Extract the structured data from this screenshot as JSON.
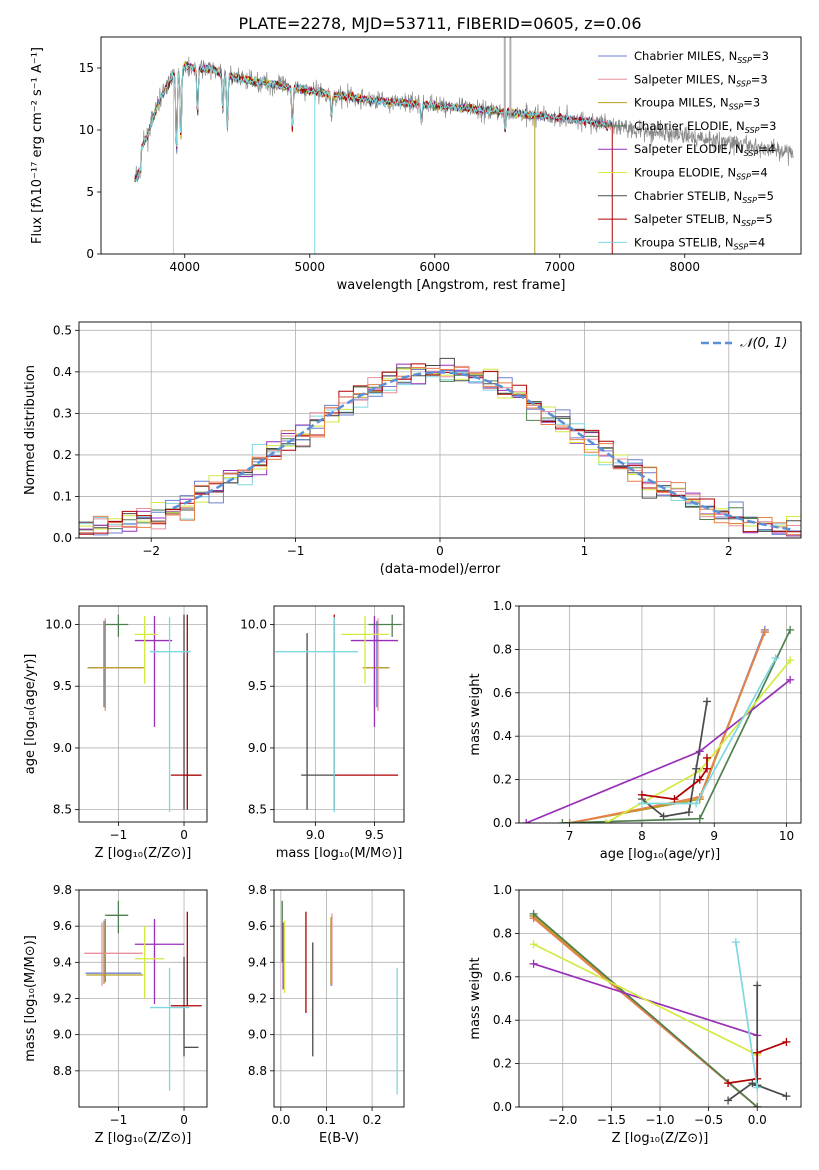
{
  "figure_title": "PLATE=2278, MJD=53711, FIBERID=0605, z=0.06",
  "series_colors": {
    "Chabrier MILES": "#6f7fd0",
    "Salpeter MILES": "#e8909f",
    "Kroupa MILES": "#b8a020",
    "Chabrier ELODIE": "#4f7f4f",
    "Salpeter ELODIE": "#9a2fb8",
    "Kroupa ELODIE": "#d4ea40",
    "Chabrier STELIB": "#4a4a4a",
    "Salpeter STELIB": "#b00000",
    "Kroupa STELIB": "#7ed8e0",
    "extra_gray": "#888888",
    "orange": "#e8804a",
    "magenta": "#e040e0"
  },
  "chart_data": [
    {
      "id": "spectrum",
      "type": "line",
      "xlabel": "wavelength [Angstrom, rest frame]",
      "ylabel": "Flux [fλ10⁻¹⁷ erg cm⁻² s⁻¹ A⁻¹]",
      "xlim": [
        3330,
        8930
      ],
      "ylim": [
        0,
        17.5
      ],
      "xticks": [
        4000,
        5000,
        6000,
        7000,
        8000
      ],
      "yticks": [
        0,
        5,
        10,
        15
      ],
      "grid": false,
      "legend_position": "top-right",
      "legend": [
        {
          "name": "Chabrier MILES",
          "sub": "SSP",
          "val": "=3"
        },
        {
          "name": "Salpeter MILES",
          "sub": "SSP",
          "val": "=3"
        },
        {
          "name": "Kroupa MILES",
          "sub": "SSP",
          "val": "=3"
        },
        {
          "name": "Chabrier ELODIE",
          "sub": "SSP",
          "val": "=3"
        },
        {
          "name": "Salpeter ELODIE",
          "sub": "SSP",
          "val": "=4"
        },
        {
          "name": "Kroupa ELODIE",
          "sub": "SSP",
          "val": "=4"
        },
        {
          "name": "Chabrier STELIB",
          "sub": "SSP",
          "val": "=5"
        },
        {
          "name": "Salpeter STELIB",
          "sub": "SSP",
          "val": "=5"
        },
        {
          "name": "Kroupa STELIB",
          "sub": "SSP",
          "val": "=4"
        }
      ],
      "continuum": {
        "x": [
          3600,
          3700,
          3800,
          3900,
          4000,
          4100,
          4200,
          4300,
          4400,
          4500,
          4700,
          5000,
          5200,
          5500,
          6000,
          6500,
          6800,
          7000,
          7200,
          7400
        ],
        "y": [
          7.5,
          9.5,
          12.5,
          14.3,
          15.2,
          15.0,
          14.9,
          14.6,
          14.2,
          14.0,
          13.7,
          13.2,
          12.8,
          12.4,
          12.0,
          11.5,
          11.2,
          11.0,
          10.7,
          10.4
        ]
      },
      "data_xrange": [
        3600,
        8870
      ]
    },
    {
      "id": "residuals",
      "type": "step",
      "xlabel": "(data-model)/error",
      "ylabel": "Normed distribution",
      "xlim": [
        -2.5,
        2.5
      ],
      "ylim": [
        0,
        0.52
      ],
      "xticks": [
        -2,
        -1,
        0,
        1,
        2
      ],
      "xticklabels": [
        "−2",
        "−1",
        "0",
        "1",
        "2"
      ],
      "yticks": [
        0.0,
        0.1,
        0.2,
        0.3,
        0.4,
        0.5
      ],
      "yticklabels": [
        "0.0",
        "0.1",
        "0.2",
        "0.3",
        "0.4",
        "0.5"
      ],
      "grid": true,
      "legend_position": "top-right",
      "gaussian_label": "𝒩(0, 1)",
      "gaussian_color": "#5b8fd6",
      "bin_width": 0.1
    },
    {
      "id": "age_vs_Z",
      "type": "errorbar",
      "xlabel": "Z [log₁₀(Z/Z⊙)]",
      "ylabel": "age  [log₁₀(age/yr)]",
      "xlim": [
        -1.6,
        0.35
      ],
      "ylim": [
        8.4,
        10.15
      ],
      "xticks": [
        -1,
        0
      ],
      "xticklabels": [
        "−1",
        "0"
      ],
      "yticks": [
        8.5,
        9.0,
        9.5,
        10.0
      ],
      "yticklabels": [
        "8.5",
        "9.0",
        "9.5",
        "10.0"
      ],
      "grid": true,
      "points": [
        {
          "s": "Chabrier MILES",
          "x": -1.22,
          "y": 9.65,
          "xe": [
            0.25,
            0.58
          ],
          "ye": [
            0.32,
            0.38
          ]
        },
        {
          "s": "Salpeter MILES",
          "x": -1.2,
          "y": 9.65,
          "xe": [
            0.25,
            0.6
          ],
          "ye": [
            0.35,
            0.4
          ]
        },
        {
          "s": "Kroupa MILES",
          "x": -1.2,
          "y": 9.65,
          "xe": [
            0.26,
            0.58
          ],
          "ye": [
            0.33,
            0.38
          ]
        },
        {
          "s": "Chabrier ELODIE",
          "x": -1.0,
          "y": 10.0,
          "xe": [
            0.2,
            0.15
          ],
          "ye": [
            0.1,
            0.08
          ]
        },
        {
          "s": "Salpeter ELODIE",
          "x": -0.45,
          "y": 9.87,
          "xe": [
            0.3,
            0.27
          ],
          "ye": [
            0.7,
            0.2
          ]
        },
        {
          "s": "Kroupa ELODIE",
          "x": -0.6,
          "y": 9.92,
          "xe": [
            0.15,
            0.2
          ],
          "ye": [
            0.4,
            0.15
          ]
        },
        {
          "s": "Chabrier STELIB",
          "x": 0.0,
          "y": 8.78,
          "xe": [
            0.0,
            0.25
          ],
          "ye": [
            0.28,
            1.3
          ]
        },
        {
          "s": "Salpeter STELIB",
          "x": 0.05,
          "y": 8.78,
          "xe": [
            0.25,
            0.22
          ],
          "ye": [
            0.28,
            1.3
          ]
        },
        {
          "s": "Kroupa STELIB",
          "x": -0.22,
          "y": 9.78,
          "xe": [
            0.3,
            0.32
          ],
          "ye": [
            1.3,
            0.28
          ]
        }
      ]
    },
    {
      "id": "age_vs_mass",
      "type": "errorbar",
      "xlabel": "mass [log₁₀(M/M⊙)]",
      "ylabel": "",
      "xlim": [
        8.65,
        9.75
      ],
      "ylim": [
        8.4,
        10.15
      ],
      "xticks": [
        9.0,
        9.5
      ],
      "xticklabels": [
        "9.0",
        "9.5"
      ],
      "yticks": [
        8.5,
        9.0,
        9.5,
        10.0
      ],
      "yticklabels": [
        "8.5",
        "9.0",
        "9.5",
        "10.0"
      ],
      "grid": true,
      "points": [
        {
          "s": "Chabrier MILES",
          "x": 9.52,
          "y": 9.65,
          "xe": [
            0.1,
            0.1
          ],
          "ye": [
            0.32,
            0.38
          ]
        },
        {
          "s": "Salpeter MILES",
          "x": 9.53,
          "y": 9.65,
          "xe": [
            0.12,
            0.1
          ],
          "ye": [
            0.35,
            0.4
          ]
        },
        {
          "s": "Kroupa MILES",
          "x": 9.5,
          "y": 9.65,
          "xe": [
            0.1,
            0.12
          ],
          "ye": [
            0.33,
            0.38
          ]
        },
        {
          "s": "Chabrier ELODIE",
          "x": 9.65,
          "y": 10.0,
          "xe": [
            0.2,
            0.08
          ],
          "ye": [
            0.1,
            0.08
          ]
        },
        {
          "s": "Salpeter ELODIE",
          "x": 9.5,
          "y": 9.87,
          "xe": [
            0.2,
            0.2
          ],
          "ye": [
            0.7,
            0.2
          ]
        },
        {
          "s": "Kroupa ELODIE",
          "x": 9.42,
          "y": 9.92,
          "xe": [
            0.2,
            0.2
          ],
          "ye": [
            0.4,
            0.15
          ]
        },
        {
          "s": "Chabrier STELIB",
          "x": 8.93,
          "y": 8.78,
          "xe": [
            0.05,
            0.25
          ],
          "ye": [
            0.28,
            1.15
          ]
        },
        {
          "s": "Salpeter STELIB",
          "x": 9.16,
          "y": 8.78,
          "xe": [
            0.0,
            0.54
          ],
          "ye": [
            0.28,
            1.3
          ]
        },
        {
          "s": "Kroupa STELIB",
          "x": 9.16,
          "y": 9.78,
          "xe": [
            0.5,
            0.2
          ],
          "ye": [
            1.3,
            0.28
          ]
        }
      ]
    },
    {
      "id": "weight_vs_age",
      "type": "line-marker",
      "xlabel": "age  [log₁₀(age/yr)]",
      "ylabel": "mass weight",
      "xlim": [
        6.3,
        10.2
      ],
      "ylim": [
        0,
        1.0
      ],
      "xticks": [
        7,
        8,
        9,
        10
      ],
      "yticks": [
        0.0,
        0.2,
        0.4,
        0.6,
        0.8,
        1.0
      ],
      "yticklabels": [
        "0.0",
        "0.2",
        "0.4",
        "0.6",
        "0.8",
        "1.0"
      ],
      "grid": true,
      "series": [
        {
          "s": "Chabrier MILES",
          "x": [
            7.0,
            8.8,
            9.7
          ],
          "y": [
            0.0,
            0.11,
            0.89
          ]
        },
        {
          "s": "Salpeter MILES",
          "x": [
            7.0,
            8.8,
            9.7
          ],
          "y": [
            0.0,
            0.11,
            0.88
          ]
        },
        {
          "s": "Kroupa MILES",
          "x": [
            7.0,
            8.8,
            9.7
          ],
          "y": [
            0.0,
            0.11,
            0.88
          ]
        },
        {
          "s": "orange",
          "x": [
            7.0,
            8.8,
            9.7
          ],
          "y": [
            0.0,
            0.12,
            0.88
          ]
        },
        {
          "s": "Chabrier ELODIE",
          "x": [
            6.9,
            8.8,
            10.05
          ],
          "y": [
            0.0,
            0.02,
            0.89
          ]
        },
        {
          "s": "Salpeter ELODIE",
          "x": [
            6.4,
            8.8,
            10.05
          ],
          "y": [
            0.0,
            0.33,
            0.66
          ]
        },
        {
          "s": "Kroupa ELODIE",
          "x": [
            7.5,
            8.8,
            10.05
          ],
          "y": [
            0.0,
            0.24,
            0.75
          ]
        },
        {
          "s": "Chabrier STELIB",
          "x": [
            8.0,
            8.3,
            8.65,
            8.75,
            8.9
          ],
          "y": [
            0.11,
            0.03,
            0.05,
            0.25,
            0.56
          ]
        },
        {
          "s": "Salpeter STELIB",
          "x": [
            8.0,
            8.45,
            8.8,
            8.9,
            8.9
          ],
          "y": [
            0.13,
            0.11,
            0.2,
            0.25,
            0.3
          ]
        },
        {
          "s": "Kroupa STELIB",
          "x": [
            8.0,
            8.75,
            9.85
          ],
          "y": [
            0.09,
            0.09,
            0.76
          ]
        }
      ]
    },
    {
      "id": "mass_vs_Z",
      "type": "errorbar",
      "xlabel": "Z [log₁₀(Z/Z⊙)]",
      "ylabel": "mass [log₁₀(M/M⊙)]",
      "xlim": [
        -1.6,
        0.35
      ],
      "ylim": [
        8.6,
        9.8
      ],
      "xticks": [
        -1,
        0
      ],
      "xticklabels": [
        "−1",
        "0"
      ],
      "yticks": [
        8.8,
        9.0,
        9.2,
        9.4,
        9.6,
        9.8
      ],
      "yticklabels": [
        "8.8",
        "9.0",
        "9.2",
        "9.4",
        "9.6",
        "9.8"
      ],
      "grid": true,
      "points": [
        {
          "s": "Chabrier MILES",
          "x": -1.2,
          "y": 9.34,
          "xe": [
            0.3,
            0.55
          ],
          "ye": [
            0.05,
            0.3
          ]
        },
        {
          "s": "Salpeter MILES",
          "x": -1.25,
          "y": 9.45,
          "xe": [
            0.27,
            0.62
          ],
          "ye": [
            0.18,
            0.17
          ]
        },
        {
          "s": "Kroupa MILES",
          "x": -1.22,
          "y": 9.33,
          "xe": [
            0.27,
            0.6
          ],
          "ye": [
            0.05,
            0.3
          ]
        },
        {
          "s": "Chabrier ELODIE",
          "x": -1.0,
          "y": 9.66,
          "xe": [
            0.2,
            0.15
          ],
          "ye": [
            0.1,
            0.08
          ]
        },
        {
          "s": "Salpeter ELODIE",
          "x": -0.45,
          "y": 9.5,
          "xe": [
            0.3,
            0.45
          ],
          "ye": [
            0.33,
            0.14
          ]
        },
        {
          "s": "Kroupa ELODIE",
          "x": -0.6,
          "y": 9.42,
          "xe": [
            0.15,
            0.3
          ],
          "ye": [
            0.22,
            0.18
          ]
        },
        {
          "s": "Chabrier STELIB",
          "x": 0.0,
          "y": 8.93,
          "xe": [
            0.0,
            0.22
          ],
          "ye": [
            0.05,
            0.5
          ]
        },
        {
          "s": "Salpeter STELIB",
          "x": 0.05,
          "y": 9.16,
          "xe": [
            0.25,
            0.22
          ],
          "ye": [
            0.0,
            0.52
          ]
        },
        {
          "s": "Kroupa STELIB",
          "x": -0.22,
          "y": 9.15,
          "xe": [
            0.3,
            0.3
          ],
          "ye": [
            0.46,
            0.22
          ]
        }
      ]
    },
    {
      "id": "mass_vs_EBV",
      "type": "errorbar",
      "xlabel": "E(B-V)",
      "ylabel": "",
      "xlim": [
        -0.015,
        0.27
      ],
      "ylim": [
        8.6,
        9.8
      ],
      "xticks": [
        0.0,
        0.1,
        0.2
      ],
      "xticklabels": [
        "0.0",
        "0.1",
        "0.2"
      ],
      "yticks": [
        8.8,
        9.0,
        9.2,
        9.4,
        9.6,
        9.8
      ],
      "yticklabels": [
        "8.8",
        "9.0",
        "9.2",
        "9.4",
        "9.6",
        "9.8"
      ],
      "grid": true,
      "points": [
        {
          "s": "Chabrier MILES",
          "x": 0.11,
          "y": 9.45,
          "xe": [
            0,
            0
          ],
          "ye": [
            0.18,
            0.17
          ]
        },
        {
          "s": "Salpeter MILES",
          "x": 0.112,
          "y": 9.45,
          "xe": [
            0,
            0
          ],
          "ye": [
            0.18,
            0.22
          ]
        },
        {
          "s": "Kroupa MILES",
          "x": 0.11,
          "y": 9.45,
          "xe": [
            0,
            0
          ],
          "ye": [
            0.17,
            0.2
          ]
        },
        {
          "s": "Chabrier ELODIE",
          "x": 0.003,
          "y": 9.55,
          "xe": [
            0,
            0
          ],
          "ye": [
            0.15,
            0.19
          ]
        },
        {
          "s": "Salpeter ELODIE",
          "x": 0.005,
          "y": 9.4,
          "xe": [
            0,
            0
          ],
          "ye": [
            0.15,
            0.22
          ]
        },
        {
          "s": "Kroupa ELODIE",
          "x": 0.008,
          "y": 9.4,
          "xe": [
            0,
            0
          ],
          "ye": [
            0.17,
            0.23
          ]
        },
        {
          "s": "Chabrier STELIB",
          "x": 0.07,
          "y": 9.2,
          "xe": [
            0,
            0
          ],
          "ye": [
            0.32,
            0.31
          ]
        },
        {
          "s": "Salpeter STELIB",
          "x": 0.055,
          "y": 9.4,
          "xe": [
            0,
            0
          ],
          "ye": [
            0.28,
            0.28
          ]
        },
        {
          "s": "Kroupa STELIB",
          "x": 0.255,
          "y": 9.0,
          "xe": [
            0,
            0
          ],
          "ye": [
            0.33,
            0.37
          ]
        }
      ]
    },
    {
      "id": "weight_vs_Z",
      "type": "line-marker",
      "xlabel": "Z [log₁₀(Z/Z⊙)]",
      "ylabel": "mass weight",
      "xlim": [
        -2.45,
        0.45
      ],
      "ylim": [
        0,
        1.0
      ],
      "xticks": [
        -2.0,
        -1.5,
        -1.0,
        -0.5,
        0.0
      ],
      "xticklabels": [
        "−2.0",
        "−1.5",
        "−1.0",
        "−0.5",
        "0.0"
      ],
      "yticks": [
        0.0,
        0.2,
        0.4,
        0.6,
        0.8,
        1.0
      ],
      "yticklabels": [
        "0.0",
        "0.2",
        "0.4",
        "0.6",
        "0.8",
        "1.0"
      ],
      "grid": true,
      "series": [
        {
          "s": "Chabrier MILES",
          "x": [
            -2.3,
            0.0
          ],
          "y": [
            0.88,
            0.0
          ]
        },
        {
          "s": "Salpeter MILES",
          "x": [
            -2.3,
            0.0
          ],
          "y": [
            0.87,
            0.0
          ]
        },
        {
          "s": "Kroupa MILES",
          "x": [
            -2.3,
            0.0
          ],
          "y": [
            0.88,
            0.0
          ]
        },
        {
          "s": "orange",
          "x": [
            -2.3,
            0.0
          ],
          "y": [
            0.87,
            0.0
          ]
        },
        {
          "s": "Chabrier ELODIE",
          "x": [
            -2.3,
            0.0
          ],
          "y": [
            0.89,
            0.0
          ]
        },
        {
          "s": "Salpeter ELODIE",
          "x": [
            -2.3,
            0.0
          ],
          "y": [
            0.66,
            0.33
          ]
        },
        {
          "s": "Kroupa ELODIE",
          "x": [
            -2.3,
            0.0
          ],
          "y": [
            0.75,
            0.24
          ]
        },
        {
          "s": "Chabrier STELIB",
          "x": [
            -0.3,
            -0.05,
            0.0,
            0.0,
            0.0,
            0.3
          ],
          "y": [
            0.03,
            0.11,
            0.1,
            0.56,
            0.1,
            0.05
          ]
        },
        {
          "s": "Salpeter STELIB",
          "x": [
            -0.3,
            0.0,
            0.0,
            0.3
          ],
          "y": [
            0.11,
            0.13,
            0.25,
            0.3
          ]
        },
        {
          "s": "Kroupa STELIB",
          "x": [
            -0.22,
            0.0,
            0.0
          ],
          "y": [
            0.76,
            0.09,
            0.09
          ]
        }
      ]
    }
  ]
}
